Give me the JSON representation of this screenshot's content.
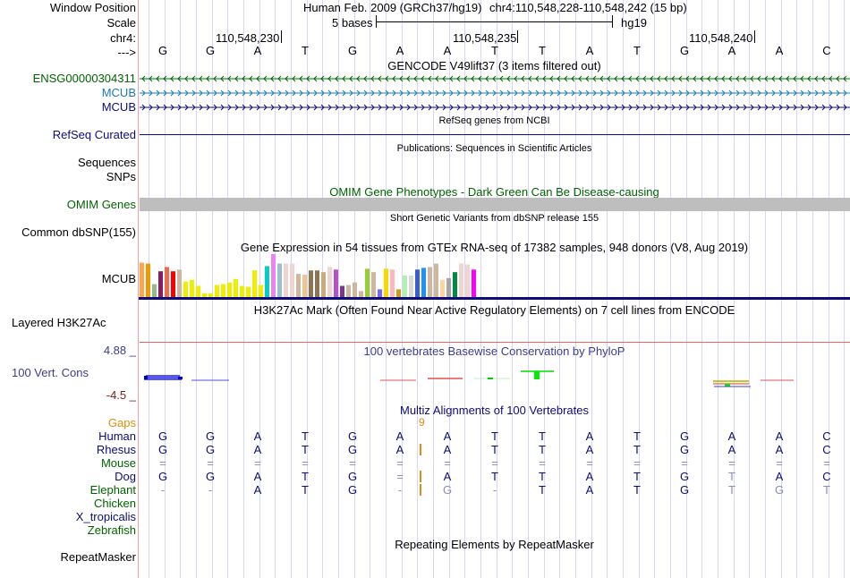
{
  "header": {
    "window_position_label": "Window Position",
    "scale_label": "Scale",
    "chrom_label": "chr4:",
    "strand_label": "--->",
    "assembly": "Human Feb. 2009 (GRCh37/hg19)",
    "position": "chr4:110,548,228-110,548,242 (15 bp)",
    "scale_text": "5 bases",
    "scale_db": "hg19",
    "ticks": [
      "110,548,230",
      "110,548,235",
      "110,548,240"
    ],
    "sequence": [
      "G",
      "G",
      "A",
      "T",
      "G",
      "A",
      "A",
      "T",
      "T",
      "A",
      "T",
      "G",
      "A",
      "A",
      "C"
    ]
  },
  "tracks": {
    "gencode": {
      "title": "GENCODE V49lift37 (3 items filtered out)",
      "rows": [
        {
          "label": "ENSG00000304311",
          "color": "#006400",
          "direction": "left"
        },
        {
          "label": "MCUB",
          "color": "#1f78b4",
          "direction": "right"
        },
        {
          "label": "MCUB",
          "color": "#0c0c78",
          "direction": "right"
        }
      ]
    },
    "refseq": {
      "title": "RefSeq genes from NCBI",
      "label": "RefSeq Curated",
      "color": "#0c0c78"
    },
    "publications": {
      "title": "Publications: Sequences in Scientific Articles",
      "labels": [
        "Sequences",
        "SNPs"
      ]
    },
    "omim": {
      "title": "OMIM Gene Phenotypes - Dark Green Can Be Disease-causing",
      "label": "OMIM Genes",
      "color": "#006400",
      "bar_color": "#bebebe"
    },
    "dbsnp": {
      "title": "Short Genetic Variants from dbSNP release 155",
      "label": "Common dbSNP(155)"
    },
    "gtex": {
      "title": "Gene Expression in 54 tissues from GTEx RNA-seq of 17382 samples, 948 donors (V8, Aug 2019)",
      "label": "MCUB",
      "bars": [
        {
          "v": 0.8,
          "c": "#ffa54f"
        },
        {
          "v": 0.78,
          "c": "#ee9a00"
        },
        {
          "v": 0.3,
          "c": "#8fbc8f"
        },
        {
          "v": 0.6,
          "c": "#8b1c62"
        },
        {
          "v": 0.7,
          "c": "#ee6a50"
        },
        {
          "v": 0.6,
          "c": "#ff0000"
        },
        {
          "v": 0.64,
          "c": "#cdb79e"
        },
        {
          "v": 0.36,
          "c": "#eeee00"
        },
        {
          "v": 0.4,
          "c": "#eeee00"
        },
        {
          "v": 0.26,
          "c": "#eeee00"
        },
        {
          "v": 0.09,
          "c": "#eeee00"
        },
        {
          "v": 0.09,
          "c": "#eeee00"
        },
        {
          "v": 0.28,
          "c": "#eeee00"
        },
        {
          "v": 0.3,
          "c": "#eeee00"
        },
        {
          "v": 0.34,
          "c": "#eeee00"
        },
        {
          "v": 0.42,
          "c": "#eeee00"
        },
        {
          "v": 0.26,
          "c": "#eeee00"
        },
        {
          "v": 0.24,
          "c": "#eeee00"
        },
        {
          "v": 0.62,
          "c": "#eeee00"
        },
        {
          "v": 0.28,
          "c": "#eeee00"
        },
        {
          "v": 0.72,
          "c": "#00cdcd"
        },
        {
          "v": 1.0,
          "c": "#ee82ee"
        },
        {
          "v": 0.78,
          "c": "#9ac0cd"
        },
        {
          "v": 0.78,
          "c": "#eed5d2"
        },
        {
          "v": 0.78,
          "c": "#eed5d2"
        },
        {
          "v": 0.54,
          "c": "#cdb79e"
        },
        {
          "v": 0.52,
          "c": "#eec591"
        },
        {
          "v": 0.62,
          "c": "#8b7355"
        },
        {
          "v": 0.62,
          "c": "#8b7355"
        },
        {
          "v": 0.58,
          "c": "#cdaa7d"
        },
        {
          "v": 0.7,
          "c": "#eed5d2"
        },
        {
          "v": 0.64,
          "c": "#b452cd"
        },
        {
          "v": 0.26,
          "c": "#7a378b"
        },
        {
          "v": 0.28,
          "c": "#cdb79e"
        },
        {
          "v": 0.34,
          "c": "#cdb79e"
        },
        {
          "v": 0.14,
          "c": "#cdb79e"
        },
        {
          "v": 0.66,
          "c": "#9acd32"
        },
        {
          "v": 0.58,
          "c": "#cdb79e"
        },
        {
          "v": 0.18,
          "c": "#7b68ee"
        },
        {
          "v": 0.66,
          "c": "#ffd700"
        },
        {
          "v": 0.64,
          "c": "#ffb6c1"
        },
        {
          "v": 0.18,
          "c": "#cd9b1d"
        },
        {
          "v": 0.5,
          "c": "#b4eeb4"
        },
        {
          "v": 0.5,
          "c": "#d9d9d9"
        },
        {
          "v": 0.64,
          "c": "#3a5fcd"
        },
        {
          "v": 0.68,
          "c": "#1e90ff"
        },
        {
          "v": 0.7,
          "c": "#cdb79e"
        },
        {
          "v": 0.78,
          "c": "#cdb79e"
        },
        {
          "v": 0.4,
          "c": "#ffd39b"
        },
        {
          "v": 0.44,
          "c": "#a6a6a6"
        },
        {
          "v": 0.58,
          "c": "#008b45"
        },
        {
          "v": 0.78,
          "c": "#eed5d2"
        },
        {
          "v": 0.76,
          "c": "#eed5d2"
        },
        {
          "v": 0.64,
          "c": "#ff00ff"
        }
      ]
    },
    "h3k27ac": {
      "title": "H3K27Ac Mark (Often Found Near Active Regulatory Elements) on 7 cell lines from ENCODE",
      "label": "Layered H3K27Ac"
    },
    "phylop": {
      "title": "100 vertebrates Basewise Conservation by PhyloP",
      "label": "100 Vert. Cons",
      "max_label": "4.88 _",
      "min_label": "-4.5 _",
      "ymax": 4.88,
      "ymin": -4.5
    },
    "multiz": {
      "title": "Multiz Alignments of 100 Vertebrates",
      "gaps_label": "Gaps",
      "gap_count": "9",
      "gap_color": "#e08e0b",
      "species": [
        {
          "name": "Human",
          "color": "#0c0c78",
          "bases": [
            "G",
            "G",
            "A",
            "T",
            "G",
            "A",
            "A",
            "T",
            "T",
            "A",
            "T",
            "G",
            "A",
            "A",
            "C"
          ],
          "faint": []
        },
        {
          "name": "Rhesus",
          "color": "#0c0c78",
          "bases": [
            "G",
            "G",
            "A",
            "T",
            "G",
            "A",
            "A",
            "T",
            "T",
            "A",
            "T",
            "G",
            "A",
            "A",
            "C"
          ],
          "faint": []
        },
        {
          "name": "Mouse",
          "color": "#006400",
          "bases": [
            "=",
            "=",
            "=",
            "=",
            "=",
            "=",
            "=",
            "=",
            "=",
            "=",
            "=",
            "=",
            "=",
            "=",
            "="
          ],
          "faint": [
            0,
            1,
            2,
            3,
            4,
            5,
            6,
            7,
            8,
            9,
            10,
            11,
            12,
            13,
            14
          ]
        },
        {
          "name": "Dog",
          "color": "#0c0c78",
          "bases": [
            "G",
            "G",
            "A",
            "T",
            "G",
            "=",
            "A",
            "T",
            "T",
            "A",
            "T",
            "G",
            "T",
            "A",
            "C"
          ],
          "faint": [
            5,
            12
          ]
        },
        {
          "name": "Elephant",
          "color": "#006400",
          "bases": [
            "-",
            "-",
            "A",
            "T",
            "G",
            "-",
            "G",
            "-",
            "T",
            "A",
            "T",
            "G",
            "T",
            "G",
            "T"
          ],
          "faint": [
            0,
            1,
            5,
            6,
            7,
            12,
            13,
            14
          ]
        },
        {
          "name": "Chicken",
          "color": "#006400",
          "bases": [],
          "faint": []
        },
        {
          "name": "X_tropicalis",
          "color": "#0c0c78",
          "bases": [],
          "faint": []
        },
        {
          "name": "Zebrafish",
          "color": "#006400",
          "bases": [],
          "faint": []
        }
      ]
    },
    "repeatmasker": {
      "title": "Repeating Elements by RepeatMasker",
      "label": "RepeatMasker"
    }
  },
  "colors": {
    "grid": "#d6d6f5",
    "divider": "#f3a0a0",
    "navy": "#0c0c78",
    "phylop_text": "#3c3c8c",
    "phylop_min": "#7a2020"
  }
}
